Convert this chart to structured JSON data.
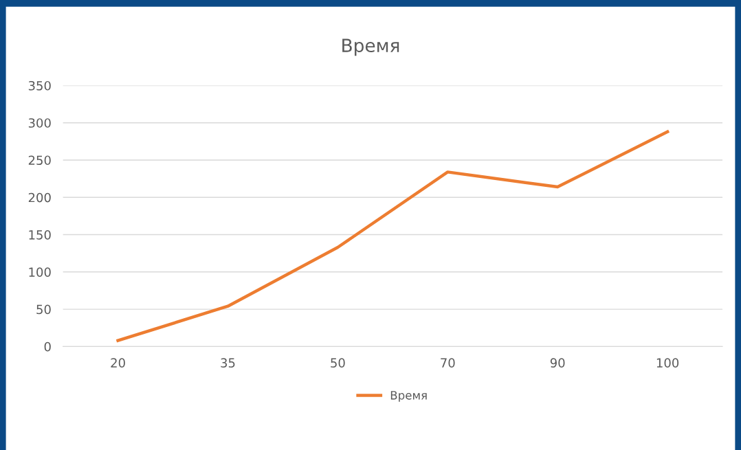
{
  "chart_data": {
    "type": "line",
    "title": "Время",
    "categories": [
      "20",
      "35",
      "50",
      "70",
      "90",
      "100"
    ],
    "series": [
      {
        "name": "Время",
        "color": "#ed7d31",
        "values": [
          8,
          54,
          133,
          234,
          214,
          288
        ]
      }
    ],
    "ylim": [
      0,
      350
    ],
    "yticks": [
      0,
      50,
      100,
      150,
      200,
      250,
      300,
      350
    ],
    "grid": "y",
    "legend": "bottom",
    "marker": "none",
    "line_style": "solid"
  }
}
